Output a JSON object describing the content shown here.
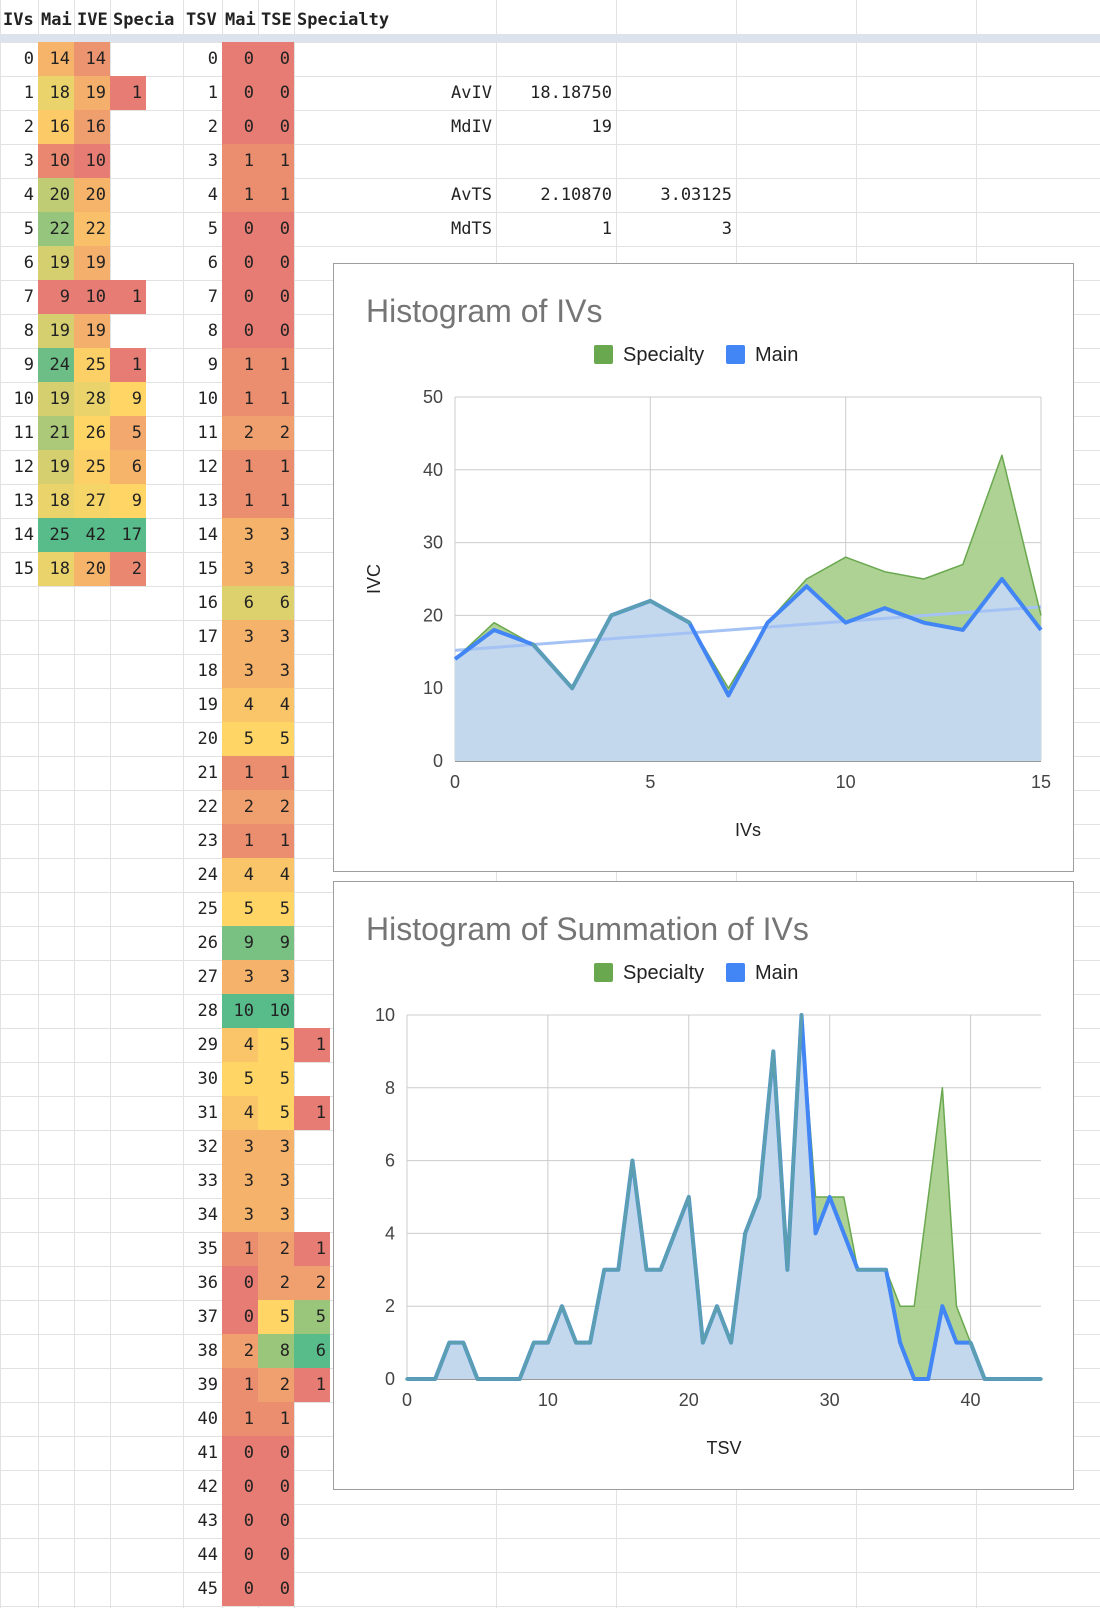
{
  "columns": [
    "IVs",
    "Mai",
    "IVE",
    "Specia",
    "TSV",
    "Mai",
    "TSE",
    "Specialty"
  ],
  "iv_table": [
    {
      "iv": "0",
      "main": "14",
      "ive": "14",
      "spec": ""
    },
    {
      "iv": "1",
      "main": "18",
      "ive": "19",
      "spec": "1"
    },
    {
      "iv": "2",
      "main": "16",
      "ive": "16",
      "spec": ""
    },
    {
      "iv": "3",
      "main": "10",
      "ive": "10",
      "spec": ""
    },
    {
      "iv": "4",
      "main": "20",
      "ive": "20",
      "spec": ""
    },
    {
      "iv": "5",
      "main": "22",
      "ive": "22",
      "spec": ""
    },
    {
      "iv": "6",
      "main": "19",
      "ive": "19",
      "spec": ""
    },
    {
      "iv": "7",
      "main": "9",
      "ive": "10",
      "spec": "1"
    },
    {
      "iv": "8",
      "main": "19",
      "ive": "19",
      "spec": ""
    },
    {
      "iv": "9",
      "main": "24",
      "ive": "25",
      "spec": "1"
    },
    {
      "iv": "10",
      "main": "19",
      "ive": "28",
      "spec": "9"
    },
    {
      "iv": "11",
      "main": "21",
      "ive": "26",
      "spec": "5"
    },
    {
      "iv": "12",
      "main": "19",
      "ive": "25",
      "spec": "6"
    },
    {
      "iv": "13",
      "main": "18",
      "ive": "27",
      "spec": "9"
    },
    {
      "iv": "14",
      "main": "25",
      "ive": "42",
      "spec": "17"
    },
    {
      "iv": "15",
      "main": "18",
      "ive": "20",
      "spec": "2"
    }
  ],
  "ts_table": [
    {
      "tsv": "0",
      "main": "0",
      "tse": "0",
      "spec": ""
    },
    {
      "tsv": "1",
      "main": "0",
      "tse": "0",
      "spec": ""
    },
    {
      "tsv": "2",
      "main": "0",
      "tse": "0",
      "spec": ""
    },
    {
      "tsv": "3",
      "main": "1",
      "tse": "1",
      "spec": ""
    },
    {
      "tsv": "4",
      "main": "1",
      "tse": "1",
      "spec": ""
    },
    {
      "tsv": "5",
      "main": "0",
      "tse": "0",
      "spec": ""
    },
    {
      "tsv": "6",
      "main": "0",
      "tse": "0",
      "spec": ""
    },
    {
      "tsv": "7",
      "main": "0",
      "tse": "0",
      "spec": ""
    },
    {
      "tsv": "8",
      "main": "0",
      "tse": "0",
      "spec": ""
    },
    {
      "tsv": "9",
      "main": "1",
      "tse": "1",
      "spec": ""
    },
    {
      "tsv": "10",
      "main": "1",
      "tse": "1",
      "spec": ""
    },
    {
      "tsv": "11",
      "main": "2",
      "tse": "2",
      "spec": ""
    },
    {
      "tsv": "12",
      "main": "1",
      "tse": "1",
      "spec": ""
    },
    {
      "tsv": "13",
      "main": "1",
      "tse": "1",
      "spec": ""
    },
    {
      "tsv": "14",
      "main": "3",
      "tse": "3",
      "spec": ""
    },
    {
      "tsv": "15",
      "main": "3",
      "tse": "3",
      "spec": ""
    },
    {
      "tsv": "16",
      "main": "6",
      "tse": "6",
      "spec": ""
    },
    {
      "tsv": "17",
      "main": "3",
      "tse": "3",
      "spec": ""
    },
    {
      "tsv": "18",
      "main": "3",
      "tse": "3",
      "spec": ""
    },
    {
      "tsv": "19",
      "main": "4",
      "tse": "4",
      "spec": ""
    },
    {
      "tsv": "20",
      "main": "5",
      "tse": "5",
      "spec": ""
    },
    {
      "tsv": "21",
      "main": "1",
      "tse": "1",
      "spec": ""
    },
    {
      "tsv": "22",
      "main": "2",
      "tse": "2",
      "spec": ""
    },
    {
      "tsv": "23",
      "main": "1",
      "tse": "1",
      "spec": ""
    },
    {
      "tsv": "24",
      "main": "4",
      "tse": "4",
      "spec": ""
    },
    {
      "tsv": "25",
      "main": "5",
      "tse": "5",
      "spec": ""
    },
    {
      "tsv": "26",
      "main": "9",
      "tse": "9",
      "spec": ""
    },
    {
      "tsv": "27",
      "main": "3",
      "tse": "3",
      "spec": ""
    },
    {
      "tsv": "28",
      "main": "10",
      "tse": "10",
      "spec": ""
    },
    {
      "tsv": "29",
      "main": "4",
      "tse": "5",
      "spec": "1"
    },
    {
      "tsv": "30",
      "main": "5",
      "tse": "5",
      "spec": ""
    },
    {
      "tsv": "31",
      "main": "4",
      "tse": "5",
      "spec": "1"
    },
    {
      "tsv": "32",
      "main": "3",
      "tse": "3",
      "spec": ""
    },
    {
      "tsv": "33",
      "main": "3",
      "tse": "3",
      "spec": ""
    },
    {
      "tsv": "34",
      "main": "3",
      "tse": "3",
      "spec": ""
    },
    {
      "tsv": "35",
      "main": "1",
      "tse": "2",
      "spec": "1"
    },
    {
      "tsv": "36",
      "main": "0",
      "tse": "2",
      "spec": "2"
    },
    {
      "tsv": "37",
      "main": "0",
      "tse": "5",
      "spec": "5"
    },
    {
      "tsv": "38",
      "main": "2",
      "tse": "8",
      "spec": "6"
    },
    {
      "tsv": "39",
      "main": "1",
      "tse": "2",
      "spec": "1"
    },
    {
      "tsv": "40",
      "main": "1",
      "tse": "1",
      "spec": ""
    },
    {
      "tsv": "41",
      "main": "0",
      "tse": "0",
      "spec": ""
    },
    {
      "tsv": "42",
      "main": "0",
      "tse": "0",
      "spec": ""
    },
    {
      "tsv": "43",
      "main": "0",
      "tse": "0",
      "spec": ""
    },
    {
      "tsv": "44",
      "main": "0",
      "tse": "0",
      "spec": ""
    },
    {
      "tsv": "45",
      "main": "0",
      "tse": "0",
      "spec": ""
    }
  ],
  "stats": [
    {
      "label": "AvIV",
      "v1": "18.18750",
      "v2": ""
    },
    {
      "label": "MdIV",
      "v1": "19",
      "v2": ""
    },
    {
      "label": "AvTS",
      "v1": "2.10870",
      "v2": "3.03125"
    },
    {
      "label": "MdTS",
      "v1": "1",
      "v2": "3"
    }
  ],
  "colors": {
    "specialty": "#6aa84f",
    "main": "#4285f4",
    "specialty_fill": "#a9d08e",
    "main_fill": "#c5d8f6",
    "trend": "#a4c2f4",
    "scale_low": "#e67c73",
    "scale_mid": "#ffd666",
    "scale_high": "#57bb8a"
  },
  "chart_data": [
    {
      "type": "area",
      "title": "Histogram of IVs",
      "xlabel": "IVs",
      "ylabel": "IVC",
      "xlim": [
        0,
        15
      ],
      "ylim": [
        0,
        50
      ],
      "xticks": [
        0,
        5,
        10,
        15
      ],
      "yticks": [
        0,
        10,
        20,
        30,
        40,
        50
      ],
      "legend": "top",
      "trendline": "linear",
      "x": [
        0,
        1,
        2,
        3,
        4,
        5,
        6,
        7,
        8,
        9,
        10,
        11,
        12,
        13,
        14,
        15
      ],
      "series": [
        {
          "name": "Specialty",
          "values": [
            14,
            19,
            16,
            10,
            20,
            22,
            19,
            10,
            19,
            25,
            28,
            26,
            25,
            27,
            42,
            20
          ]
        },
        {
          "name": "Main",
          "values": [
            14,
            18,
            16,
            10,
            20,
            22,
            19,
            9,
            19,
            24,
            19,
            21,
            19,
            18,
            25,
            18
          ]
        }
      ]
    },
    {
      "type": "area",
      "title": "Histogram of Summation of IVs",
      "xlabel": "TSV",
      "ylabel": "",
      "xlim": [
        0,
        45
      ],
      "ylim": [
        0,
        10
      ],
      "xticks": [
        0,
        10,
        20,
        30,
        40
      ],
      "yticks": [
        0,
        2,
        4,
        6,
        8,
        10
      ],
      "legend": "top",
      "x": [
        0,
        1,
        2,
        3,
        4,
        5,
        6,
        7,
        8,
        9,
        10,
        11,
        12,
        13,
        14,
        15,
        16,
        17,
        18,
        19,
        20,
        21,
        22,
        23,
        24,
        25,
        26,
        27,
        28,
        29,
        30,
        31,
        32,
        33,
        34,
        35,
        36,
        37,
        38,
        39,
        40,
        41,
        42,
        43,
        44,
        45
      ],
      "series": [
        {
          "name": "Specialty",
          "values": [
            0,
            0,
            0,
            1,
            1,
            0,
            0,
            0,
            0,
            1,
            1,
            2,
            1,
            1,
            3,
            3,
            6,
            3,
            3,
            4,
            5,
            1,
            2,
            1,
            4,
            5,
            9,
            3,
            10,
            5,
            5,
            5,
            3,
            3,
            3,
            2,
            2,
            5,
            8,
            2,
            1,
            0,
            0,
            0,
            0,
            0
          ]
        },
        {
          "name": "Main",
          "values": [
            0,
            0,
            0,
            1,
            1,
            0,
            0,
            0,
            0,
            1,
            1,
            2,
            1,
            1,
            3,
            3,
            6,
            3,
            3,
            4,
            5,
            1,
            2,
            1,
            4,
            5,
            9,
            3,
            10,
            4,
            5,
            4,
            3,
            3,
            3,
            1,
            0,
            0,
            2,
            1,
            1,
            0,
            0,
            0,
            0,
            0
          ]
        }
      ]
    }
  ]
}
